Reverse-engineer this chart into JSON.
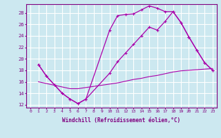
{
  "xlabel": "Windchill (Refroidissement éolien,°C)",
  "bg_color": "#cce8f0",
  "grid_color": "#ffffff",
  "line_color": "#aa00aa",
  "xlim": [
    -0.5,
    23.5
  ],
  "ylim": [
    11.5,
    29.5
  ],
  "yticks": [
    12,
    14,
    16,
    18,
    20,
    22,
    24,
    26,
    28
  ],
  "xticks": [
    0,
    1,
    2,
    3,
    4,
    5,
    6,
    7,
    8,
    9,
    10,
    11,
    12,
    13,
    14,
    15,
    16,
    17,
    18,
    19,
    20,
    21,
    22,
    23
  ],
  "line1_x": [
    1,
    2,
    3,
    4,
    5,
    6,
    7,
    10,
    11,
    12,
    13,
    14,
    15,
    16,
    17,
    18,
    19,
    20,
    21,
    22,
    23
  ],
  "line1_y": [
    19.0,
    17.0,
    15.5,
    14.0,
    13.0,
    12.2,
    13.0,
    25.0,
    27.5,
    27.7,
    27.8,
    28.5,
    29.2,
    28.8,
    28.2,
    28.2,
    26.3,
    23.8,
    21.5,
    19.3,
    18.0
  ],
  "line2_x": [
    1,
    2,
    3,
    4,
    5,
    6,
    7,
    10,
    11,
    12,
    13,
    14,
    15,
    16,
    17,
    18,
    19,
    20,
    21,
    22,
    23
  ],
  "line2_y": [
    19.0,
    17.0,
    15.5,
    14.0,
    13.0,
    12.2,
    13.0,
    17.5,
    19.5,
    21.0,
    22.5,
    24.0,
    25.5,
    25.0,
    26.5,
    28.2,
    26.3,
    23.8,
    21.5,
    19.3,
    18.0
  ],
  "line3_x": [
    1,
    2,
    3,
    4,
    5,
    6,
    7,
    8,
    9,
    10,
    11,
    12,
    13,
    14,
    15,
    16,
    17,
    18,
    19,
    20,
    21,
    22,
    23
  ],
  "line3_y": [
    16.0,
    15.7,
    15.4,
    15.1,
    14.8,
    14.8,
    15.0,
    15.2,
    15.4,
    15.6,
    15.8,
    16.1,
    16.4,
    16.6,
    16.9,
    17.1,
    17.4,
    17.7,
    17.9,
    18.0,
    18.1,
    18.2,
    18.3
  ]
}
